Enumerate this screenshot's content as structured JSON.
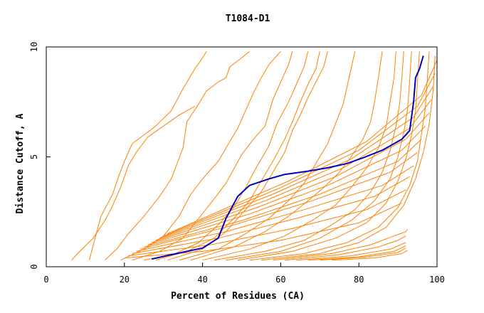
{
  "chart_data": {
    "type": "line",
    "title": "T1084-D1",
    "xlabel": "Percent of Residues (CA)",
    "ylabel": "Distance Cutoff, A",
    "xlim": [
      0,
      100
    ],
    "ylim": [
      0,
      10
    ],
    "xticks": [
      "0",
      "20",
      "40",
      "60",
      "80",
      "100"
    ],
    "yticks": [
      "0",
      "5",
      "10"
    ],
    "grid": false,
    "colors": {
      "models": "#ff8000",
      "highlight": "#0000c0",
      "axis": "#000000"
    },
    "highlight_series": {
      "x": [
        27,
        32,
        36,
        40,
        44,
        46,
        49,
        52,
        57,
        61,
        67,
        72,
        77,
        81,
        86,
        91,
        93,
        94,
        94.5,
        95.5,
        96.5
      ],
      "y": [
        0.35,
        0.55,
        0.7,
        0.85,
        1.3,
        2.2,
        3.2,
        3.7,
        4.0,
        4.2,
        4.35,
        4.5,
        4.7,
        4.95,
        5.3,
        5.8,
        6.2,
        7.5,
        8.6,
        9.0,
        9.6
      ]
    },
    "model_series": [
      {
        "x": [
          6.5,
          8,
          12,
          15,
          16.5,
          19,
          21,
          23,
          26,
          30,
          34,
          38
        ],
        "y": [
          0.3,
          0.6,
          1.3,
          2.1,
          2.6,
          3.6,
          4.6,
          5.2,
          5.9,
          6.4,
          6.9,
          7.3
        ]
      },
      {
        "x": [
          11,
          14,
          15.5,
          17,
          18.5,
          20,
          22,
          25,
          28,
          32,
          35,
          38,
          40,
          41
        ],
        "y": [
          0.3,
          2.3,
          2.8,
          3.3,
          4.1,
          4.8,
          5.6,
          6.0,
          6.4,
          7.1,
          8.1,
          9.0,
          9.5,
          9.8
        ]
      },
      {
        "x": [
          15,
          18,
          21,
          25,
          29,
          32,
          35,
          36,
          39,
          41,
          44,
          46,
          47,
          50,
          52
        ],
        "y": [
          0.3,
          0.8,
          1.5,
          2.3,
          3.2,
          4.0,
          5.4,
          6.6,
          7.4,
          8.0,
          8.4,
          8.6,
          9.1,
          9.5,
          9.8
        ]
      },
      {
        "x": [
          19,
          25,
          30,
          34,
          37,
          40,
          42,
          44,
          46,
          49,
          51,
          53,
          55,
          57,
          60
        ],
        "y": [
          0.3,
          0.8,
          1.4,
          2.3,
          3.3,
          4.0,
          4.4,
          4.8,
          5.4,
          6.3,
          7.1,
          7.9,
          8.6,
          9.2,
          9.8
        ]
      },
      {
        "x": [
          22,
          29,
          35,
          39,
          43,
          46,
          50,
          53,
          56,
          58,
          60,
          62,
          63
        ],
        "y": [
          0.3,
          0.7,
          1.3,
          2.2,
          3.1,
          3.8,
          5.1,
          5.8,
          6.4,
          7.6,
          8.4,
          9.2,
          9.8
        ]
      },
      {
        "x": [
          25,
          33,
          39,
          44,
          48,
          51,
          54,
          57,
          59,
          62,
          64,
          66,
          67
        ],
        "y": [
          0.3,
          0.6,
          1.1,
          1.9,
          2.7,
          3.6,
          4.6,
          5.5,
          6.5,
          7.5,
          8.3,
          9.1,
          9.8
        ]
      },
      {
        "x": [
          28,
          36,
          43,
          48,
          52,
          55,
          58,
          61,
          63,
          65,
          67,
          69,
          70
        ],
        "y": [
          0.3,
          0.7,
          1.3,
          2.2,
          3.0,
          3.9,
          4.8,
          5.8,
          6.6,
          7.5,
          8.3,
          9.0,
          9.8
        ]
      },
      {
        "x": [
          31,
          40,
          46,
          51,
          55,
          58,
          61,
          63,
          65,
          67,
          69,
          71,
          72
        ],
        "y": [
          0.3,
          0.8,
          1.6,
          2.6,
          3.4,
          4.3,
          5.2,
          6.2,
          6.9,
          7.7,
          8.4,
          9.1,
          9.8
        ]
      },
      {
        "x": [
          34,
          44,
          51,
          57,
          62,
          66,
          69,
          72,
          74,
          76,
          77,
          78,
          79
        ],
        "y": [
          0.3,
          0.8,
          1.5,
          2.2,
          3.0,
          3.8,
          4.7,
          5.6,
          6.5,
          7.4,
          8.2,
          9.0,
          9.8
        ]
      },
      {
        "x": [
          37,
          48,
          56,
          62,
          67,
          71,
          75,
          78,
          81,
          83,
          84,
          85,
          86
        ],
        "y": [
          0.3,
          0.9,
          1.6,
          2.3,
          3.0,
          3.6,
          4.3,
          5.0,
          5.8,
          6.6,
          7.5,
          8.6,
          9.8
        ]
      },
      {
        "x": [
          40,
          52,
          61,
          68,
          74,
          78,
          82,
          85,
          87,
          88,
          89,
          89.5
        ],
        "y": [
          0.3,
          0.8,
          1.4,
          2.1,
          2.8,
          3.6,
          4.5,
          5.4,
          6.4,
          7.5,
          8.6,
          9.8
        ]
      },
      {
        "x": [
          43,
          56,
          66,
          73,
          79,
          83,
          86,
          88,
          89.5,
          90.5,
          91,
          91.5
        ],
        "y": [
          0.3,
          0.7,
          1.2,
          1.9,
          2.6,
          3.4,
          4.3,
          5.3,
          6.4,
          7.5,
          8.6,
          9.8
        ]
      },
      {
        "x": [
          46,
          60,
          70,
          78,
          84,
          88,
          90,
          91.5,
          92.5,
          93,
          93.5
        ],
        "y": [
          0.3,
          0.7,
          1.3,
          2.1,
          3.0,
          4.0,
          5.0,
          6.1,
          7.2,
          8.5,
          9.8
        ]
      },
      {
        "x": [
          49,
          63,
          74,
          82,
          87,
          90,
          92,
          93.5,
          94.5,
          95,
          95.5
        ],
        "y": [
          0.3,
          0.7,
          1.3,
          2.0,
          2.9,
          3.9,
          4.9,
          6.0,
          7.1,
          8.4,
          9.8
        ]
      },
      {
        "x": [
          52,
          66,
          77,
          85,
          90,
          93,
          95,
          96,
          97,
          97.5,
          98
        ],
        "y": [
          0.3,
          0.6,
          1.1,
          1.8,
          2.7,
          3.7,
          4.8,
          6.0,
          7.2,
          8.5,
          9.8
        ]
      },
      {
        "x": [
          55,
          70,
          80,
          87,
          91.5,
          94.5,
          96.5,
          98,
          99,
          99.5
        ],
        "y": [
          0.3,
          0.6,
          1.1,
          1.8,
          2.8,
          4.0,
          5.2,
          6.5,
          8.0,
          9.6
        ]
      },
      {
        "x": [
          58,
          73,
          83,
          89,
          92,
          92.5
        ],
        "y": [
          0.3,
          0.6,
          1.0,
          1.4,
          1.6,
          1.7
        ]
      },
      {
        "x": [
          61,
          75,
          85,
          90,
          92
        ],
        "y": [
          0.3,
          0.55,
          0.9,
          1.2,
          1.4
        ]
      },
      {
        "x": [
          64,
          78,
          88,
          92
        ],
        "y": [
          0.3,
          0.5,
          0.8,
          1.1
        ]
      },
      {
        "x": [
          67,
          80,
          89,
          92
        ],
        "y": [
          0.3,
          0.45,
          0.7,
          0.95
        ]
      },
      {
        "x": [
          70,
          82,
          90,
          92
        ],
        "y": [
          0.3,
          0.45,
          0.65,
          0.85
        ]
      },
      {
        "x": [
          73,
          84,
          91,
          92.5
        ],
        "y": [
          0.3,
          0.4,
          0.6,
          0.75
        ]
      },
      {
        "x": [
          20,
          40,
          60,
          80,
          91
        ],
        "y": [
          0.4,
          0.7,
          1.2,
          2.0,
          2.9
        ]
      },
      {
        "x": [
          21,
          42,
          62,
          82,
          92
        ],
        "y": [
          0.5,
          1.0,
          1.7,
          2.6,
          3.5
        ]
      },
      {
        "x": [
          22,
          44,
          64,
          84,
          93
        ],
        "y": [
          0.6,
          1.3,
          2.2,
          3.2,
          4.1
        ]
      },
      {
        "x": [
          23,
          46,
          66,
          86,
          94
        ],
        "y": [
          0.7,
          1.6,
          2.6,
          3.7,
          4.6
        ]
      },
      {
        "x": [
          24,
          48,
          68,
          88,
          95
        ],
        "y": [
          0.8,
          1.9,
          3.0,
          4.3,
          5.2
        ]
      },
      {
        "x": [
          25,
          50,
          70,
          90,
          96
        ],
        "y": [
          0.9,
          2.1,
          3.3,
          4.8,
          5.8
        ]
      },
      {
        "x": [
          26,
          52,
          72,
          91,
          97
        ],
        "y": [
          1.0,
          2.4,
          3.7,
          5.3,
          6.4
        ]
      },
      {
        "x": [
          27,
          54,
          74,
          92,
          98
        ],
        "y": [
          1.1,
          2.7,
          4.1,
          5.8,
          7.0
        ]
      },
      {
        "x": [
          28,
          56,
          76,
          93,
          98.5
        ],
        "y": [
          1.2,
          3.0,
          4.5,
          6.3,
          7.6
        ]
      },
      {
        "x": [
          29,
          58,
          78,
          94,
          99
        ],
        "y": [
          1.3,
          3.3,
          4.9,
          6.8,
          8.2
        ]
      },
      {
        "x": [
          30,
          60,
          80,
          95,
          99.5
        ],
        "y": [
          1.4,
          3.6,
          5.3,
          7.3,
          8.8
        ]
      },
      {
        "x": [
          31,
          62,
          82,
          96,
          100
        ],
        "y": [
          1.5,
          3.9,
          5.7,
          7.8,
          9.4
        ]
      }
    ]
  }
}
